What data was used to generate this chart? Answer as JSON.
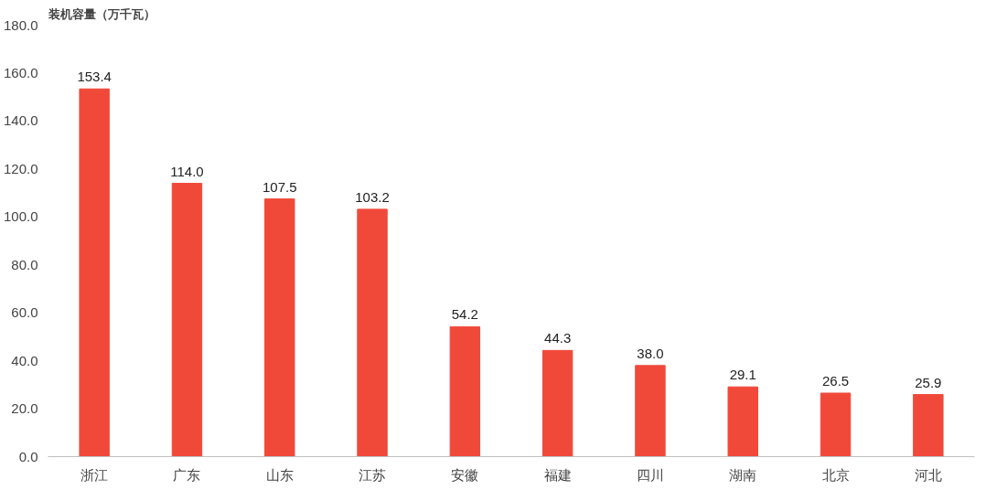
{
  "chart_data": {
    "type": "bar",
    "ylabel": "装机容量（万千瓦）",
    "categories": [
      "浙江",
      "广东",
      "山东",
      "江苏",
      "安徽",
      "福建",
      "四川",
      "湖南",
      "北京",
      "河北"
    ],
    "values": [
      153.4,
      114.0,
      107.5,
      103.2,
      54.2,
      44.3,
      38.0,
      29.1,
      26.5,
      25.9
    ],
    "value_labels": [
      "153.4",
      "114.0",
      "107.5",
      "103.2",
      "54.2",
      "44.3",
      "38.0",
      "29.1",
      "26.5",
      "25.9"
    ],
    "color": "#f0493a",
    "ylim": [
      0,
      180
    ],
    "yticks": [
      {
        "value": 0,
        "label": "0.0"
      },
      {
        "value": 20,
        "label": "20.0"
      },
      {
        "value": 40,
        "label": "40.0"
      },
      {
        "value": 60,
        "label": "60.0"
      },
      {
        "value": 80,
        "label": "80.0"
      },
      {
        "value": 100,
        "label": "100.0"
      },
      {
        "value": 120,
        "label": "120.0"
      },
      {
        "value": 140,
        "label": "140.0"
      },
      {
        "value": 160,
        "label": "160.0"
      },
      {
        "value": 180,
        "label": "180.0"
      }
    ]
  }
}
